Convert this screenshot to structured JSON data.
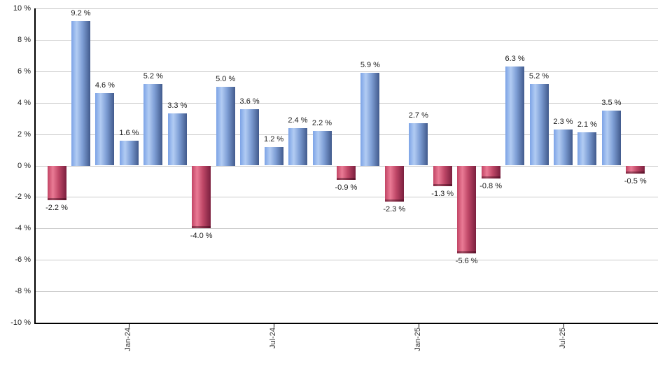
{
  "chart_data": {
    "type": "bar",
    "description": "Monthly returns bar chart, positive months blue, negative months red",
    "ylim": [
      -10,
      10
    ],
    "ytick_step": 2,
    "grid": true,
    "legend": false,
    "value_suffix": " %",
    "bars": [
      {
        "label": "-2.2 %",
        "value": -2.2
      },
      {
        "label": "9.2 %",
        "value": 9.2
      },
      {
        "label": "4.6 %",
        "value": 4.6
      },
      {
        "label": "1.6 %",
        "value": 1.6
      },
      {
        "label": "5.2 %",
        "value": 5.2
      },
      {
        "label": "3.3 %",
        "value": 3.3
      },
      {
        "label": "-4.0 %",
        "value": -4.0
      },
      {
        "label": "5.0 %",
        "value": 5.0
      },
      {
        "label": "3.6 %",
        "value": 3.6
      },
      {
        "label": "1.2 %",
        "value": 1.2
      },
      {
        "label": "2.4 %",
        "value": 2.4
      },
      {
        "label": "2.2 %",
        "value": 2.2
      },
      {
        "label": "-0.9 %",
        "value": -0.9
      },
      {
        "label": "5.9 %",
        "value": 5.9
      },
      {
        "label": "-2.3 %",
        "value": -2.3
      },
      {
        "label": "2.7 %",
        "value": 2.7
      },
      {
        "label": "-1.3 %",
        "value": -1.3
      },
      {
        "label": "-5.6 %",
        "value": -5.6
      },
      {
        "label": "-0.8 %",
        "value": -0.8
      },
      {
        "label": "6.3 %",
        "value": 6.3
      },
      {
        "label": "5.2 %",
        "value": 5.2
      },
      {
        "label": "2.3 %",
        "value": 2.3
      },
      {
        "label": "2.1 %",
        "value": 2.1
      },
      {
        "label": "3.5 %",
        "value": 3.5
      },
      {
        "label": "-0.5 %",
        "value": -0.5
      }
    ],
    "x_tick_labels": [
      {
        "label": "Jan-24",
        "bar_index": 3
      },
      {
        "label": "Jul-24",
        "bar_index": 9
      },
      {
        "label": "Jan-25",
        "bar_index": 15
      },
      {
        "label": "Jul-25",
        "bar_index": 21
      }
    ],
    "y_ticks": [
      {
        "label": "10 %",
        "value": 10
      },
      {
        "label": "8 %",
        "value": 8
      },
      {
        "label": "6 %",
        "value": 6
      },
      {
        "label": "4 %",
        "value": 4
      },
      {
        "label": "2 %",
        "value": 2
      },
      {
        "label": "0 %",
        "value": 0
      },
      {
        "label": "-2 %",
        "value": -2
      },
      {
        "label": "-4 %",
        "value": -4
      },
      {
        "label": "-6 %",
        "value": -6
      },
      {
        "label": "-8 %",
        "value": -8
      },
      {
        "label": "-10 %",
        "value": -10
      }
    ],
    "colors": {
      "positive_edge_left": "#7ca3e6",
      "positive_highlight": "#b2ccf3",
      "positive_mid": "#7f9fd6",
      "positive_edge_right": "#415a8c",
      "negative_edge_left": "#c24465",
      "negative_highlight": "#ea7b95",
      "negative_mid": "#c04868",
      "negative_edge_right": "#7b1f3e",
      "gridline": "#cbcbcb",
      "axis": "#000000",
      "label_text": "#1c1c1c"
    }
  }
}
